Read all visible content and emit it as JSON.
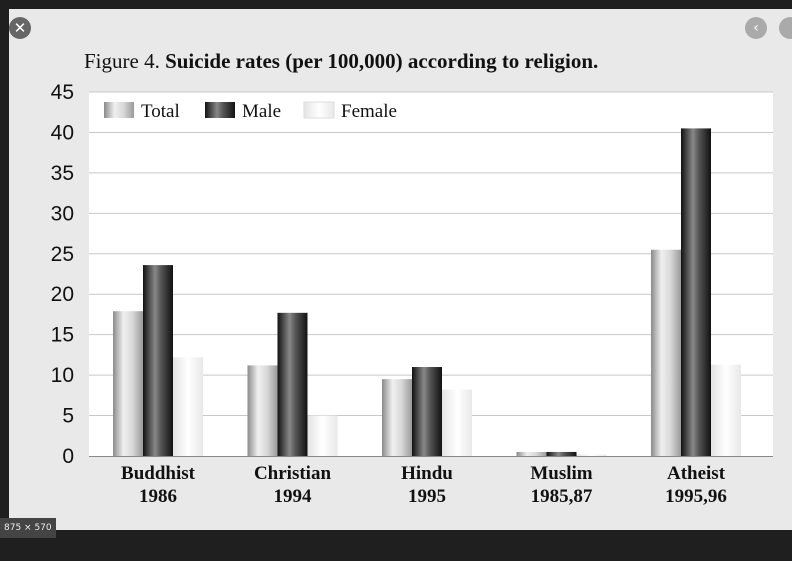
{
  "viewer": {
    "close_glyph": "✕",
    "prev_glyph": "‹",
    "image_size_label": "875 × 570"
  },
  "chart_data": {
    "type": "bar",
    "title_prefix": "Figure 4.",
    "title": "Suicide rates (per 100,000) according to religion.",
    "categories": [
      [
        "Buddhist",
        "1986"
      ],
      [
        "Christian",
        "1994"
      ],
      [
        "Hindu",
        "1995"
      ],
      [
        "Muslim",
        "1985,87"
      ],
      [
        "Atheist",
        "1995,96"
      ]
    ],
    "series": [
      {
        "name": "Total",
        "values": [
          17.9,
          11.2,
          9.5,
          0.5,
          25.5
        ],
        "color": "#bdbdbd"
      },
      {
        "name": "Male",
        "values": [
          23.6,
          17.7,
          11.0,
          0.5,
          40.5
        ],
        "color": "#333333"
      },
      {
        "name": "Female",
        "values": [
          12.2,
          5.0,
          8.2,
          0.2,
          11.3
        ],
        "color": "#f2f2f2"
      }
    ],
    "yticks": [
      "0",
      "5",
      "10",
      "15",
      "20",
      "25",
      "30",
      "35",
      "40",
      "45"
    ],
    "ylim": [
      0,
      45
    ],
    "grid": true,
    "legend_position": "top-left"
  }
}
